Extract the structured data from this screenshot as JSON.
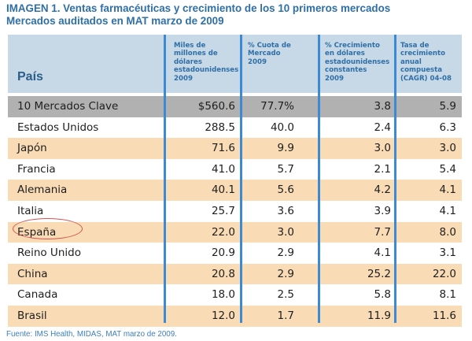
{
  "title": {
    "line1": "IMAGEN 1. Ventas farmacéuticas y crecimiento de los 10 primeros mercados",
    "line2": "Mercados auditados en MAT marzo de 2009"
  },
  "table": {
    "headers": {
      "pais": "País",
      "col1": [
        "Miles de",
        "millones de",
        "dólares",
        "estadounidenses",
        "2009"
      ],
      "col2": [
        "% Cuota de",
        "Mercado",
        "2009"
      ],
      "col3": [
        "% Crecimiento",
        "en dólares",
        "estadounidenses",
        "constantes",
        "2009"
      ],
      "col4": [
        "Tasa de",
        "crecimiento",
        "anual",
        "compuesta",
        "(CAGR) 04-08"
      ]
    },
    "rows": [
      {
        "pais": "10 Mercados Clave",
        "ventas": "$560.6",
        "cuota": "77.7%",
        "crecimiento": "3.8",
        "cagr": "5.9",
        "style": "key"
      },
      {
        "pais": "Estados Unidos",
        "ventas": "288.5",
        "cuota": "40.0",
        "crecimiento": "2.4",
        "cagr": "6.3",
        "style": "white"
      },
      {
        "pais": "Japón",
        "ventas": "71.6",
        "cuota": "9.9",
        "crecimiento": "3.0",
        "cagr": "3.0",
        "style": "tan"
      },
      {
        "pais": "Francia",
        "ventas": "41.0",
        "cuota": "5.7",
        "crecimiento": "2.1",
        "cagr": "5.4",
        "style": "white"
      },
      {
        "pais": "Alemania",
        "ventas": "40.1",
        "cuota": "5.6",
        "crecimiento": "4.2",
        "cagr": "4.1",
        "style": "tan"
      },
      {
        "pais": "Italia",
        "ventas": "25.7",
        "cuota": "3.6",
        "crecimiento": "3.9",
        "cagr": "4.1",
        "style": "white"
      },
      {
        "pais": "España",
        "ventas": "22.0",
        "cuota": "3.0",
        "crecimiento": "7.7",
        "cagr": "8.0",
        "style": "tan",
        "highlighted": true
      },
      {
        "pais": "Reino Unido",
        "ventas": "20.9",
        "cuota": "2.9",
        "crecimiento": "4.1",
        "cagr": "3.1",
        "style": "white"
      },
      {
        "pais": "China",
        "ventas": "20.8",
        "cuota": "2.9",
        "crecimiento": "25.2",
        "cagr": "22.0",
        "style": "tan"
      },
      {
        "pais": "Canada",
        "ventas": "18.0",
        "cuota": "2.5",
        "crecimiento": "5.8",
        "cagr": "8.1",
        "style": "white"
      },
      {
        "pais": "Brasil",
        "ventas": "12.0",
        "cuota": "1.7",
        "crecimiento": "11.9",
        "cagr": "11.6",
        "style": "tan"
      }
    ]
  },
  "colors": {
    "header_bg": "#c7d8e6",
    "tan_row": "#f9dbb5",
    "key_row": "#b1b1b1",
    "separator": "#3b8ad3",
    "title": "#2f6fa8",
    "highlight_oval": "#d35252"
  },
  "source": "Fuente: IMS Health, MIDAS, MAT marzo de 2009."
}
